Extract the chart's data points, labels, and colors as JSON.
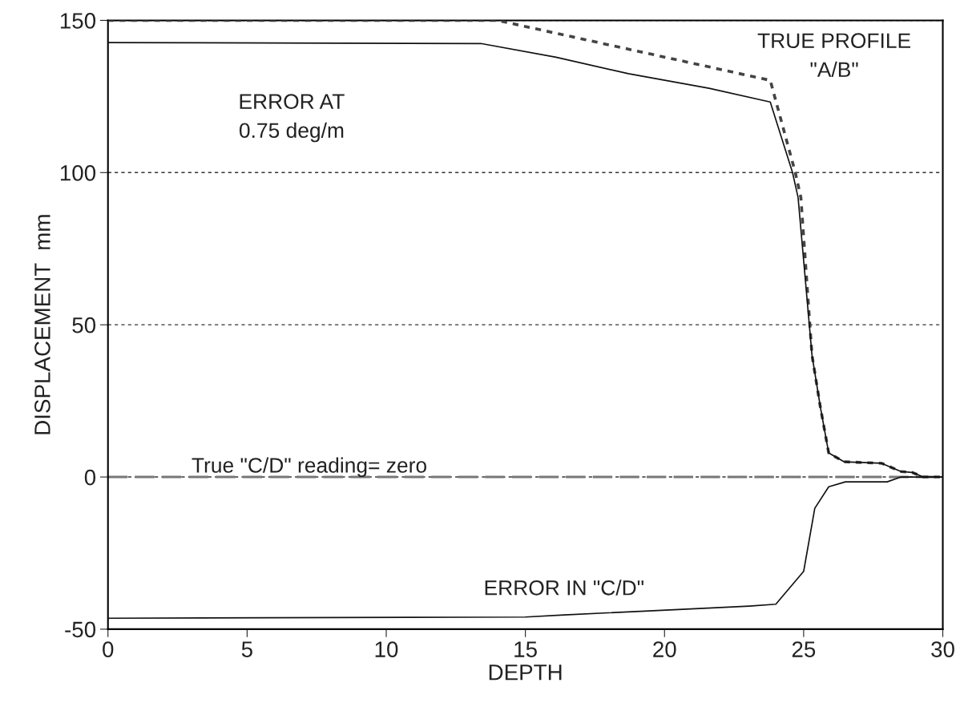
{
  "chart_data": {
    "type": "line",
    "xlabel": "DEPTH",
    "ylabel": "DISPLACEMENT  mm",
    "xlim": [
      0,
      30
    ],
    "xticks": [
      0,
      5,
      10,
      15,
      20,
      25,
      30
    ],
    "ylim": [
      -50,
      150
    ],
    "yticks": [
      -50,
      0,
      50,
      100,
      150
    ],
    "grid": "y",
    "legend": false,
    "marker": "none",
    "series": [
      {
        "name": "TRUE PROFILE\n\"A/B\"",
        "color": "#444444",
        "line_style": "dotted",
        "x": [
          0,
          14,
          14.5,
          23.8,
          24.7,
          24.9,
          25.3,
          25.6,
          25.9,
          26.45,
          27.8,
          28.5,
          28.9,
          29.3,
          30
        ],
        "values": [
          150,
          150,
          149,
          130.3,
          100,
          91.8,
          40,
          23,
          7.9,
          5,
          4.5,
          1.8,
          1.5,
          0,
          0
        ]
      },
      {
        "name": "ERROR AT\n0.75 deg/m",
        "color": "#111111",
        "line_style": "solid",
        "x": [
          0,
          13.4,
          16.1,
          18.7,
          21.6,
          23.8,
          24.6,
          24.8,
          25.3,
          25.6,
          25.9,
          26.45,
          27.8,
          28.5,
          28.9,
          29.3,
          30
        ],
        "values": [
          142.7,
          142.4,
          137.9,
          132.5,
          127.7,
          123.2,
          100,
          91.8,
          40,
          23,
          7.9,
          5,
          4.5,
          1.8,
          1.5,
          0,
          0
        ]
      },
      {
        "name": "ERROR IN \"C/D\"",
        "color": "#111111",
        "line_style": "solid",
        "x": [
          0,
          15,
          16.4,
          19.9,
          23.05,
          24,
          25,
          25.4,
          25.9,
          26.5,
          28,
          28.5,
          30
        ],
        "values": [
          -46.4,
          -46,
          -45.3,
          -43.8,
          -42.4,
          -41.8,
          -31,
          -10.3,
          -3.2,
          -1.6,
          -1.6,
          0,
          0
        ]
      }
    ],
    "ref_lines": [
      {
        "axis": "y",
        "value": 0,
        "label": "True \"C/D\" reading= zero",
        "color": "#777777",
        "line_style": "dashed"
      }
    ]
  }
}
